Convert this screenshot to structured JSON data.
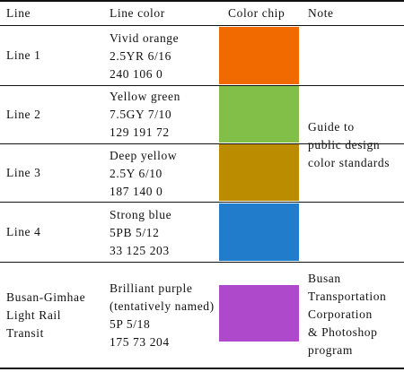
{
  "headers": {
    "line": "Line",
    "line_color": "Line color",
    "color_chip": "Color chip",
    "note": "Note"
  },
  "rows": [
    {
      "line": "Line 1",
      "name": "Vivid orange",
      "munsell": "2.5YR 6/16",
      "rgb": "240 106 0",
      "chip": "#f06a00"
    },
    {
      "line": "Line 2",
      "name": "Yellow green",
      "munsell": "7.5GY 7/10",
      "rgb": "129 191 72",
      "chip": "#81bf48"
    },
    {
      "line": "Line 3",
      "name": "Deep yellow",
      "munsell": "2.5Y 6/10",
      "rgb": "187 140 0",
      "chip": "#bb8c00"
    },
    {
      "line": "Line 4",
      "name": "Strong blue",
      "munsell": "5PB 5/12",
      "rgb": "33 125 203",
      "chip": "#217dcb"
    },
    {
      "line_parts": [
        "Busan-Gimhae",
        "Light Rail",
        "Transit"
      ],
      "name": "Brilliant purple",
      "name_note": "(tentatively named)",
      "munsell": "5P 5/18",
      "rgb": "175 73 204",
      "chip": "#af49cc"
    }
  ],
  "note_lines_1_4": [
    "Guide to",
    "public design",
    "color standards"
  ],
  "note_light_rail": [
    "Busan",
    "Transportation",
    "Corporation",
    "& Photoshop",
    "program"
  ]
}
